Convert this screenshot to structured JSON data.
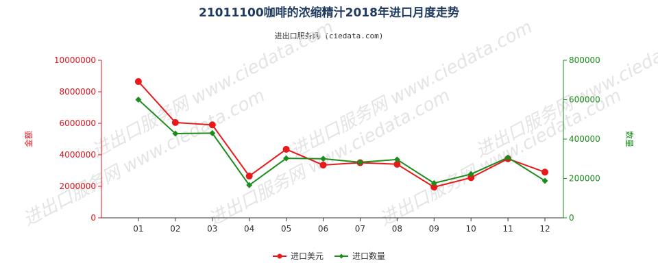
{
  "title": "21011100咖啡的浓缩精汁2018年进口月度走势",
  "subtitle": "进出口服务网 (ciedata.com)",
  "watermark": "进出口服务网 www.ciedata.com",
  "colors": {
    "left_axis": "#e0141c",
    "right_axis": "#1a8a1a",
    "series1": "#e8191b",
    "series2": "#1c8c1c",
    "title": "#1f3a5f"
  },
  "chart_data": {
    "type": "line",
    "title": "21011100咖啡的浓缩精汁2018年进口月度走势",
    "categories": [
      "01",
      "02",
      "03",
      "04",
      "05",
      "06",
      "07",
      "08",
      "09",
      "10",
      "11",
      "12"
    ],
    "y_left": {
      "label": "金额",
      "ylim": [
        0,
        10000000
      ],
      "ticks": [
        "0",
        "2000000",
        "4000000",
        "6000000",
        "8000000",
        "10000000"
      ]
    },
    "y_right": {
      "label": "数量",
      "ylim": [
        0,
        800000
      ],
      "ticks": [
        "0",
        "200000",
        "400000",
        "600000",
        "800000"
      ]
    },
    "series": [
      {
        "name": "进口美元",
        "axis": "left",
        "marker": "circle",
        "values": [
          8650000,
          6050000,
          5900000,
          2650000,
          4350000,
          3350000,
          3500000,
          3400000,
          1950000,
          2550000,
          3750000,
          2900000
        ]
      },
      {
        "name": "进口数量",
        "axis": "right",
        "marker": "diamond",
        "values": [
          600000,
          428000,
          430000,
          166000,
          302000,
          300000,
          282000,
          296000,
          176000,
          222000,
          306000,
          188000
        ]
      }
    ],
    "legend": "bottom-center",
    "grid": false
  }
}
